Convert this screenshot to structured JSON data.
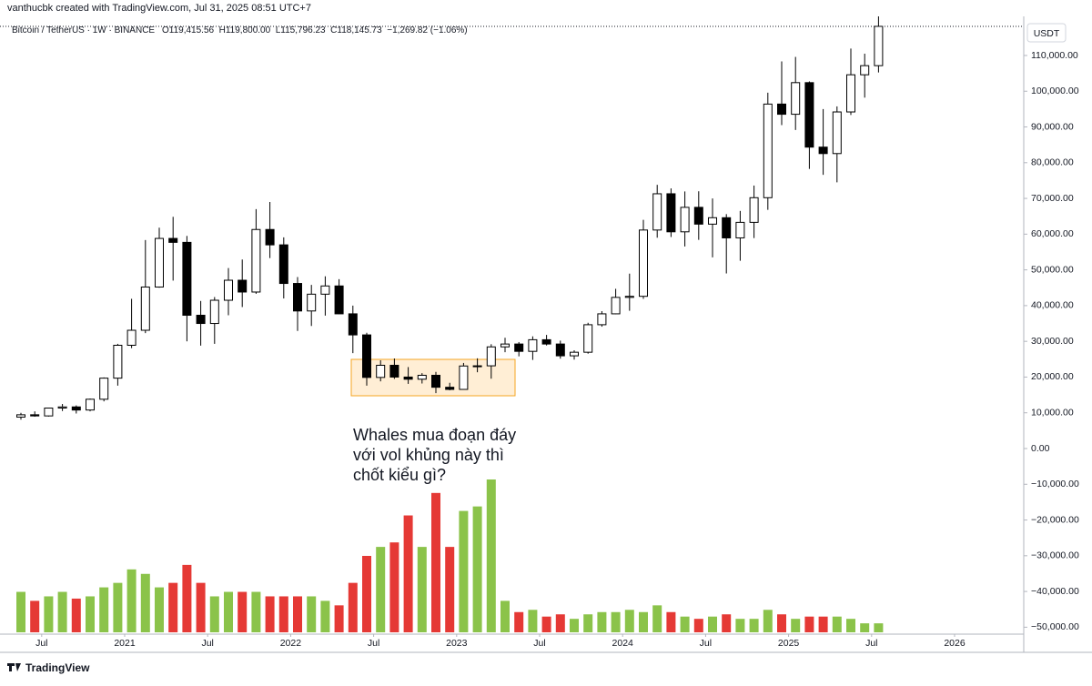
{
  "chart_data": {
    "type": "candlestick",
    "header": "vanthucbk created with TradingView.com, Jul 31, 2025 08:51 UTC+7",
    "symbol": "Bitcoin / TetherUS · 1W · BINANCE",
    "quote": "O119,415.56  H119,800.00  L115,796.23  C118,145.73  −1,269.82 (−1.06%)",
    "currency": "USDT",
    "annotation": [
      "Whales mua đoạn đáy",
      "với vol khủng này thì",
      "chốt kiểu gì?"
    ],
    "footer": "TradingView",
    "up_color": "#ffffff",
    "down_color": "#000000",
    "wick_color": "#000000",
    "volume_up_color": "#8bc34a",
    "volume_down_color": "#e53935",
    "x": [
      "2020-05",
      "2020-06",
      "2020-07",
      "2020-08",
      "2020-09",
      "2020-10",
      "2020-11",
      "2020-12",
      "2021-01",
      "2021-02",
      "2021-03",
      "2021-04",
      "2021-05",
      "2021-06",
      "2021-07",
      "2021-08",
      "2021-09",
      "2021-10",
      "2021-11",
      "2021-12",
      "2022-01",
      "2022-02",
      "2022-03",
      "2022-04",
      "2022-05",
      "2022-06",
      "2022-07",
      "2022-08",
      "2022-09",
      "2022-10",
      "2022-11",
      "2022-12",
      "2023-01",
      "2023-02",
      "2023-03",
      "2023-04",
      "2023-05",
      "2023-06",
      "2023-07",
      "2023-08",
      "2023-09",
      "2023-10",
      "2023-11",
      "2023-12",
      "2024-01",
      "2024-02",
      "2024-03",
      "2024-04",
      "2024-05",
      "2024-06",
      "2024-07",
      "2024-08",
      "2024-09",
      "2024-10",
      "2024-11",
      "2024-12",
      "2025-01",
      "2025-02",
      "2025-03",
      "2025-04",
      "2025-05",
      "2025-06",
      "2025-07"
    ],
    "open": [
      8800,
      9450,
      9130,
      11330,
      11650,
      10780,
      13800,
      19700,
      28900,
      33100,
      45200,
      58800,
      57700,
      37300,
      35000,
      41500,
      47100,
      43800,
      61300,
      57000,
      46200,
      38500,
      43200,
      45500,
      37700,
      31800,
      19900,
      23300,
      20000,
      19400,
      20500,
      17150,
      16550,
      23100,
      23150,
      28450,
      29250,
      27200,
      30450,
      29250,
      25950,
      26950,
      34650,
      37700,
      42300,
      42600,
      61150,
      71300,
      60650,
      67500,
      62800,
      64600,
      58950,
      63300,
      70200,
      96400,
      93550,
      102400,
      84350,
      82550,
      94200,
      104600,
      107150
    ],
    "high": [
      10000,
      10400,
      11450,
      12470,
      12070,
      14000,
      19900,
      29300,
      41900,
      58350,
      61800,
      64850,
      59500,
      41300,
      42400,
      50500,
      52900,
      67000,
      69000,
      59100,
      48000,
      45800,
      48200,
      47400,
      40000,
      32400,
      24700,
      25200,
      22800,
      21100,
      21450,
      18400,
      23950,
      25250,
      29200,
      31000,
      29800,
      31400,
      31800,
      30200,
      27500,
      35200,
      38450,
      44700,
      48950,
      64000,
      73800,
      72800,
      71950,
      72000,
      70000,
      65600,
      66500,
      73600,
      99600,
      108350,
      109600,
      102750,
      95000,
      95750,
      111950,
      110500,
      123200
    ],
    "low": [
      8100,
      8900,
      8950,
      10500,
      9800,
      10400,
      13200,
      17600,
      28100,
      32300,
      45000,
      47000,
      30000,
      28800,
      29300,
      37300,
      39600,
      43300,
      53300,
      42000,
      32900,
      34300,
      37200,
      37600,
      26700,
      17600,
      18800,
      19500,
      18100,
      18200,
      15500,
      16300,
      16500,
      21350,
      19550,
      26950,
      25800,
      24800,
      28850,
      25150,
      24900,
      26550,
      34100,
      37600,
      38550,
      41900,
      59000,
      59200,
      56550,
      58400,
      53500,
      49000,
      52550,
      58900,
      66800,
      90500,
      89150,
      78250,
      76600,
      74500,
      93350,
      98200,
      105250
    ],
    "close": [
      9450,
      9130,
      11330,
      11650,
      10780,
      13800,
      19700,
      28900,
      33100,
      45200,
      58800,
      57700,
      37300,
      35000,
      41500,
      47100,
      43800,
      61300,
      57000,
      46200,
      38500,
      43200,
      45500,
      37700,
      31800,
      19900,
      23300,
      20000,
      19400,
      20500,
      17150,
      16550,
      23100,
      23150,
      28450,
      29250,
      27200,
      30450,
      29250,
      25950,
      26950,
      34650,
      37700,
      42300,
      42600,
      61150,
      71300,
      60650,
      67500,
      62800,
      64600,
      58950,
      63300,
      70200,
      96400,
      93550,
      102400,
      84350,
      82550,
      94200,
      104600,
      107150,
      118150
    ],
    "volume": [
      900,
      700,
      800,
      900,
      750,
      800,
      1000,
      1100,
      1400,
      1300,
      1000,
      1100,
      1500,
      1100,
      800,
      900,
      900,
      900,
      800,
      800,
      800,
      800,
      700,
      600,
      1100,
      1700,
      1900,
      2000,
      2600,
      1900,
      3100,
      1900,
      2700,
      2800,
      3400,
      700,
      450,
      500,
      350,
      400,
      300,
      400,
      450,
      450,
      500,
      450,
      600,
      450,
      350,
      300,
      350,
      400,
      300,
      300,
      500,
      400,
      300,
      350,
      350,
      350,
      300,
      200,
      200
    ],
    "ylim": [
      -53800,
      120000
    ],
    "yticks": [
      {
        "value": 110000,
        "label": "110,000.00"
      },
      {
        "value": 100000,
        "label": "100,000.00"
      },
      {
        "value": 90000,
        "label": "90,000.00"
      },
      {
        "value": 80000,
        "label": "80,000.00"
      },
      {
        "value": 70000,
        "label": "70,000.00"
      },
      {
        "value": 60000,
        "label": "60,000.00"
      },
      {
        "value": 50000,
        "label": "50,000.00"
      },
      {
        "value": 40000,
        "label": "40,000.00"
      },
      {
        "value": 30000,
        "label": "30,000.00"
      },
      {
        "value": 20000,
        "label": "20,000.00"
      },
      {
        "value": 10000,
        "label": "10,000.00"
      },
      {
        "value": 0,
        "label": "0.00"
      },
      {
        "value": -10000,
        "label": "−10,000.00"
      },
      {
        "value": -20000,
        "label": "−20,000.00"
      },
      {
        "value": -30000,
        "label": "−30,000.00"
      },
      {
        "value": -40000,
        "label": "−40,000.00"
      },
      {
        "value": -50000,
        "label": "−50,000.00"
      }
    ],
    "xticks": [
      {
        "value": "2020-07",
        "label": "Jul"
      },
      {
        "value": "2021-01",
        "label": "2021"
      },
      {
        "value": "2021-07",
        "label": "Jul"
      },
      {
        "value": "2022-01",
        "label": "2022"
      },
      {
        "value": "2022-07",
        "label": "Jul"
      },
      {
        "value": "2023-01",
        "label": "2023"
      },
      {
        "value": "2023-07",
        "label": "Jul"
      },
      {
        "value": "2024-01",
        "label": "2024"
      },
      {
        "value": "2024-07",
        "label": "Jul"
      },
      {
        "value": "2025-01",
        "label": "2025"
      },
      {
        "value": "2025-07",
        "label": "Jul"
      },
      {
        "value": "2026-01",
        "label": "2026"
      }
    ]
  }
}
